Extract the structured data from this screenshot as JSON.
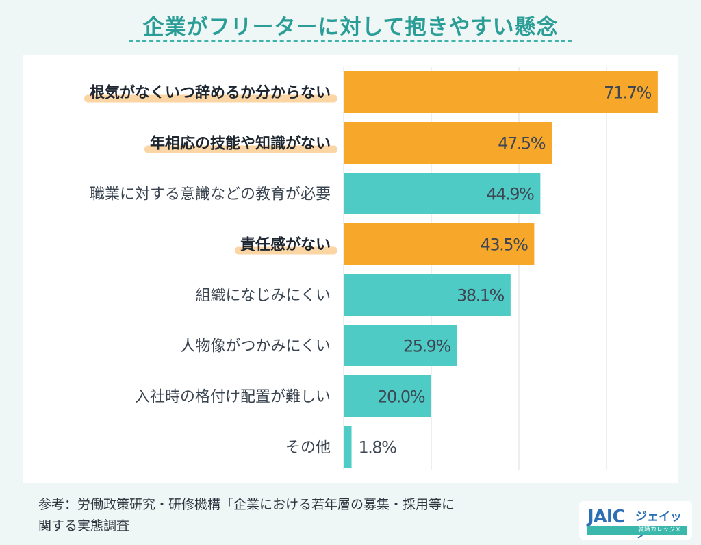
{
  "header": {
    "title": "企業がフリーターに対して抱きやすい懸念"
  },
  "chart_data": {
    "type": "bar",
    "orientation": "horizontal",
    "title": "企業がフリーターに対して抱きやすい懸念",
    "categories": [
      "根気がなくいつ辞めるか分からない",
      "年相応の技能や知識がない",
      "職業に対する意識などの教育が必要",
      "責任感がない",
      "組織になじみにくい",
      "人物像がつかみにくい",
      "入社時の格付け配置が難しい",
      "その他"
    ],
    "values": [
      71.7,
      47.5,
      44.9,
      43.5,
      38.1,
      25.9,
      20.0,
      1.8
    ],
    "value_labels": [
      "71.7%",
      "47.5%",
      "44.9%",
      "43.5%",
      "38.1%",
      "25.9%",
      "20.0%",
      "1.8%"
    ],
    "highlighted": [
      true,
      true,
      false,
      true,
      false,
      false,
      false,
      false
    ],
    "unit": "%",
    "xlim": [
      0,
      72
    ],
    "grid": true,
    "colors": {
      "highlight": "#f7a82b",
      "normal": "#4ecbc4",
      "underline": "#fbd5a3",
      "grid": "#dcdcdc"
    }
  },
  "footer": {
    "source_line1": "参考：労働政策研究・研修機構「企業における若年層の募集・採用等に",
    "source_line2": "関する実態調査"
  },
  "logo": {
    "mark": "JAIC",
    "name": "ジェイック",
    "tagline": "就職カレッジ®"
  }
}
